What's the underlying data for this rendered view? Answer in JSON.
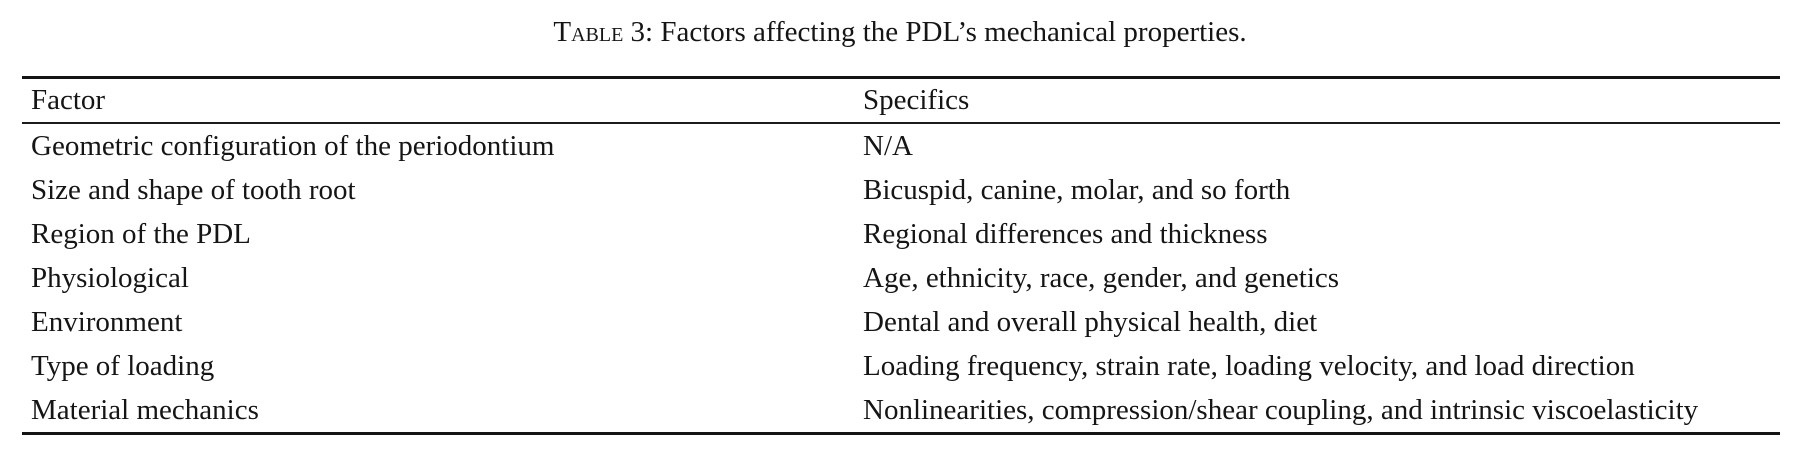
{
  "table": {
    "caption_label": "Table 3",
    "caption_text": ": Factors affecting the PDL’s mechanical properties.",
    "columns": {
      "factor": "Factor",
      "specifics": "Specifics"
    },
    "rows": [
      {
        "factor": "Geometric configuration of the periodontium",
        "specifics": "N/A"
      },
      {
        "factor": "Size and shape of tooth root",
        "specifics": "Bicuspid, canine, molar, and so forth"
      },
      {
        "factor": "Region of the PDL",
        "specifics": "Regional differences and thickness"
      },
      {
        "factor": "Physiological",
        "specifics": "Age, ethnicity, race, gender, and genetics"
      },
      {
        "factor": "Environment",
        "specifics": "Dental and overall physical health, diet"
      },
      {
        "factor": "Type of loading",
        "specifics": "Loading frequency, strain rate, loading velocity, and load direction"
      },
      {
        "factor": "Material mechanics",
        "specifics": "Nonlinearities, compression/shear coupling, and intrinsic viscoelasticity"
      }
    ]
  }
}
